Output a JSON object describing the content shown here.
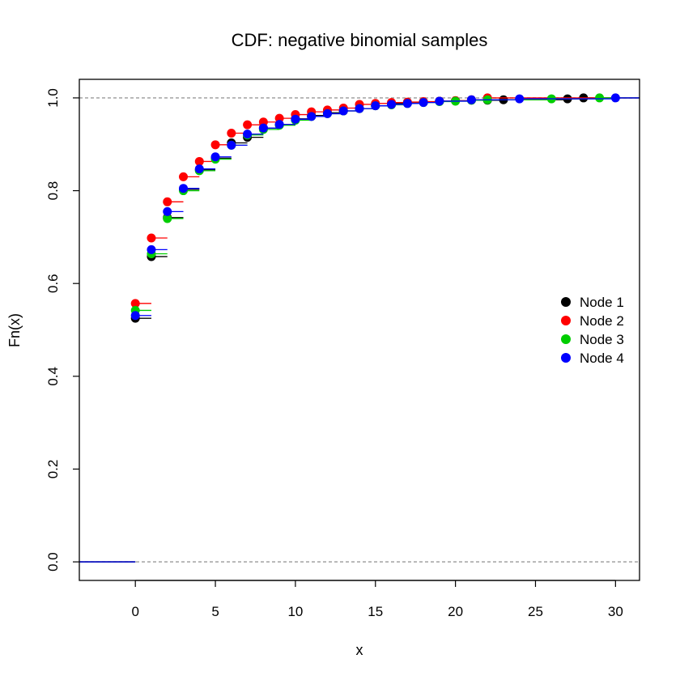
{
  "chart_data": {
    "type": "line",
    "title": "CDF: negative binomial samples",
    "xlabel": "x",
    "ylabel": "Fn(x)",
    "xlim": [
      -3.5,
      31.5
    ],
    "ylim": [
      -0.04,
      1.04
    ],
    "x_ticks": [
      0,
      5,
      10,
      15,
      20,
      25,
      30
    ],
    "y_ticks": [
      0.0,
      0.2,
      0.4,
      0.6,
      0.8,
      1.0
    ],
    "y_tick_labels": [
      "0.0",
      "0.2",
      "0.4",
      "0.6",
      "0.8",
      "1.0"
    ],
    "reference_lines": [
      0,
      1
    ],
    "reference_line_color": "#aaaaaa",
    "grid": false,
    "legend_position": "right",
    "series": [
      {
        "name": "Node 1",
        "color": "#000000",
        "x": [
          0,
          1,
          2,
          3,
          4,
          5,
          6,
          7,
          8,
          9,
          10,
          11,
          12,
          13,
          14,
          15,
          16,
          17,
          18,
          19,
          20,
          21,
          22,
          23,
          27,
          28
        ],
        "y": [
          0.525,
          0.658,
          0.742,
          0.803,
          0.845,
          0.87,
          0.903,
          0.915,
          0.935,
          0.942,
          0.955,
          0.962,
          0.968,
          0.972,
          0.977,
          0.983,
          0.988,
          0.989,
          0.991,
          0.993,
          0.994,
          0.995,
          0.995,
          0.996,
          0.998,
          1.0
        ]
      },
      {
        "name": "Node 2",
        "color": "#ff0000",
        "x": [
          0,
          1,
          2,
          3,
          4,
          5,
          6,
          7,
          8,
          9,
          10,
          11,
          12,
          13,
          14,
          15,
          16,
          17,
          18,
          19,
          20,
          21,
          22
        ],
        "y": [
          0.557,
          0.698,
          0.776,
          0.83,
          0.863,
          0.899,
          0.924,
          0.942,
          0.948,
          0.956,
          0.964,
          0.97,
          0.974,
          0.978,
          0.986,
          0.988,
          0.99,
          0.991,
          0.992,
          0.993,
          0.994,
          0.996,
          1.0
        ]
      },
      {
        "name": "Node 3",
        "color": "#00cd00",
        "x": [
          0,
          1,
          2,
          3,
          4,
          5,
          6,
          7,
          8,
          9,
          10,
          11,
          12,
          13,
          14,
          15,
          16,
          17,
          18,
          19,
          20,
          21,
          22,
          26,
          29
        ],
        "y": [
          0.542,
          0.664,
          0.74,
          0.8,
          0.843,
          0.868,
          0.898,
          0.92,
          0.932,
          0.941,
          0.952,
          0.96,
          0.966,
          0.972,
          0.977,
          0.983,
          0.985,
          0.988,
          0.99,
          0.992,
          0.993,
          0.995,
          0.996,
          0.998,
          1.0
        ]
      },
      {
        "name": "Node 4",
        "color": "#0000ff",
        "x": [
          0,
          1,
          2,
          3,
          4,
          5,
          6,
          7,
          8,
          9,
          10,
          11,
          12,
          13,
          14,
          15,
          16,
          17,
          18,
          19,
          21,
          24,
          30
        ],
        "y": [
          0.531,
          0.673,
          0.755,
          0.805,
          0.847,
          0.873,
          0.898,
          0.922,
          0.935,
          0.943,
          0.954,
          0.96,
          0.966,
          0.972,
          0.977,
          0.983,
          0.986,
          0.988,
          0.99,
          0.993,
          0.996,
          0.998,
          1.0
        ]
      }
    ]
  }
}
